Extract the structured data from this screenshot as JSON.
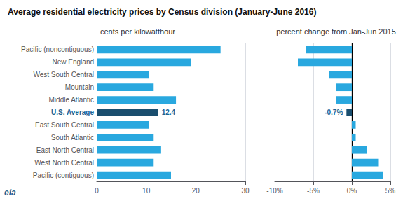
{
  "chart_data": [
    {
      "type": "bar",
      "orientation": "horizontal",
      "title": "Average residential electricity prices by Census division (January-June 2016)",
      "subtitle": "cents per kilowatthour",
      "categories": [
        "Pacific (noncontiguous)",
        "New England",
        "West South Central",
        "Mountain",
        "Middle Atlantic",
        "U.S. Average",
        "East South Central",
        "South Atlantic",
        "East North Central",
        "West North Central",
        "Pacific (contiguous)"
      ],
      "values": [
        25.0,
        19.0,
        10.5,
        11.5,
        16.0,
        12.4,
        10.5,
        11.5,
        13.0,
        11.5,
        15.0
      ],
      "colors": [
        "#29a8df",
        "#29a8df",
        "#29a8df",
        "#29a8df",
        "#29a8df",
        "#1a4e6e",
        "#29a8df",
        "#29a8df",
        "#29a8df",
        "#29a8df",
        "#29a8df"
      ],
      "xlim": [
        0,
        30
      ],
      "xticks": [
        0,
        10,
        20,
        30
      ],
      "grid": true,
      "annotations": [
        {
          "text": "12.4",
          "category": "U.S. Average",
          "color": "#1a6496"
        },
        {
          "text": "eia",
          "color": "#1a6496"
        }
      ]
    },
    {
      "type": "bar",
      "orientation": "horizontal",
      "subtitle": "percent change from Jan-Jun 2015",
      "categories": [
        "Pacific (noncontiguous)",
        "New England",
        "West South Central",
        "Mountain",
        "Middle Atlantic",
        "U.S. Average",
        "East South Central",
        "South Atlantic",
        "East North Central",
        "West North Central",
        "Pacific (contiguous)"
      ],
      "values": [
        -6.0,
        -7.0,
        -3.0,
        -2.0,
        -2.0,
        -0.7,
        0.5,
        0.5,
        2.0,
        3.5,
        4.0
      ],
      "colors": [
        "#29a8df",
        "#29a8df",
        "#29a8df",
        "#29a8df",
        "#29a8df",
        "#1a4e6e",
        "#29a8df",
        "#29a8df",
        "#29a8df",
        "#29a8df",
        "#29a8df"
      ],
      "xlim": [
        -10,
        5
      ],
      "xticks": [
        {
          "value": -10,
          "label": "-10%"
        },
        {
          "value": -5,
          "label": "-5%"
        },
        {
          "value": 0,
          "label": "0%"
        },
        {
          "value": 5,
          "label": "5%"
        }
      ],
      "grid": true,
      "tick_labels": "x",
      "annotations": [
        {
          "text": "-0.7%",
          "category": "U.S. Average",
          "color": "#1a6496"
        }
      ]
    }
  ]
}
